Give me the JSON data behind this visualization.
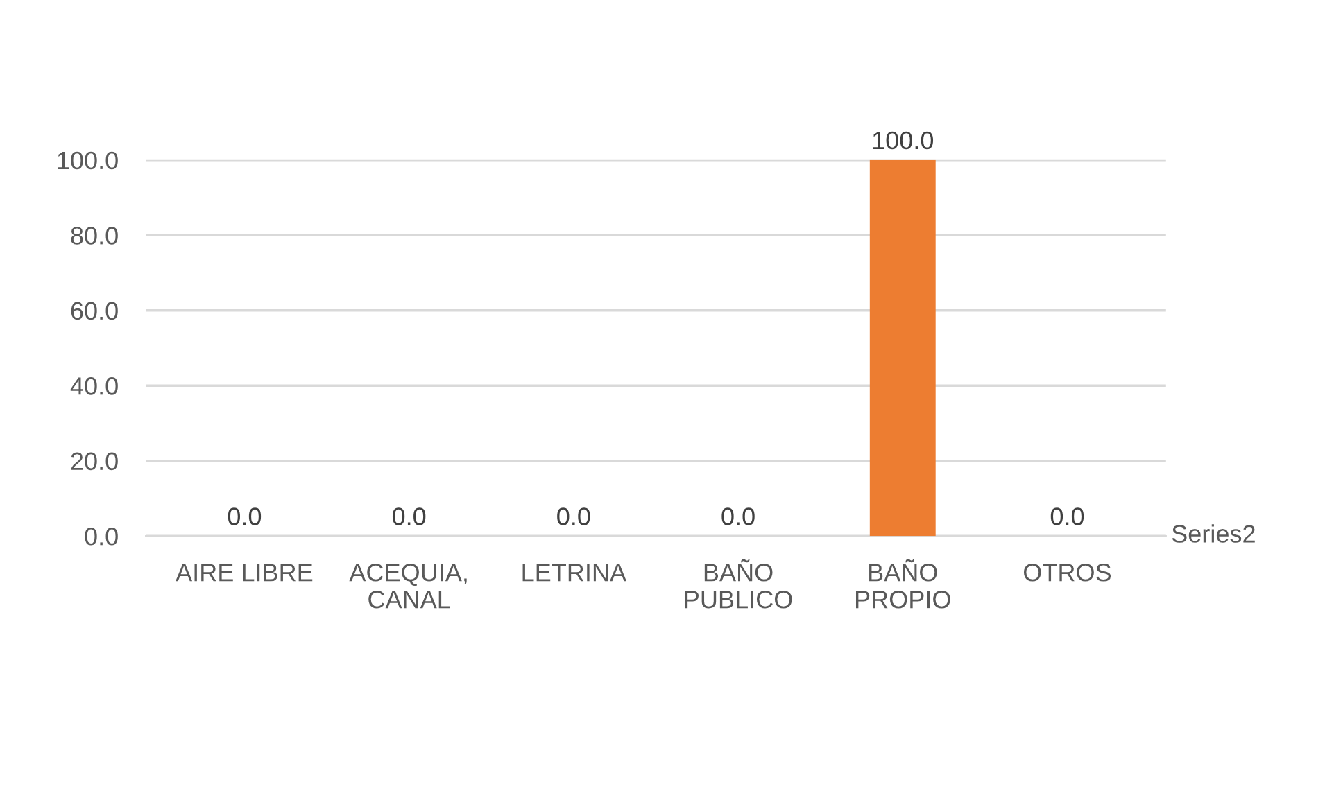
{
  "chart_data": {
    "type": "bar",
    "categories": [
      "AIRE LIBRE",
      "ACEQUIA,\nCANAL",
      "LETRINA",
      "BAÑO\nPUBLICO",
      "BAÑO\nPROPIO",
      "OTROS"
    ],
    "series": [
      {
        "name": "Series2",
        "color": "#ed7d31",
        "values": [
          0,
          0,
          0,
          0,
          100,
          0
        ],
        "value_labels": [
          "0.0",
          "0.0",
          "0.0",
          "0.0",
          "100.0",
          "0.0"
        ]
      }
    ],
    "ylim": [
      0,
      100
    ],
    "yticks": [
      {
        "value": 0,
        "label": "0.0"
      },
      {
        "value": 20,
        "label": "20.0"
      },
      {
        "value": 40,
        "label": "40.0"
      },
      {
        "value": 60,
        "label": "60.0"
      },
      {
        "value": 80,
        "label": "80.0"
      },
      {
        "value": 100,
        "label": "100.0"
      }
    ],
    "grid": "y"
  }
}
